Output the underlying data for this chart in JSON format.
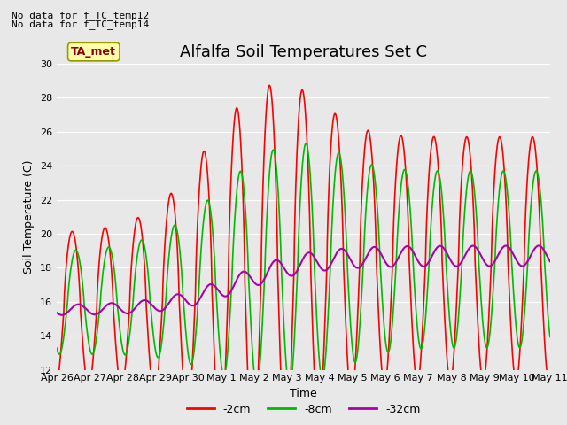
{
  "title": "Alfalfa Soil Temperatures Set C",
  "xlabel": "Time",
  "ylabel": "Soil Temperature (C)",
  "ylim": [
    12,
    30
  ],
  "xlim": [
    0,
    15
  ],
  "no_data_text": [
    "No data for f_TC_temp12",
    "No data for f_TC_temp14"
  ],
  "legend_label": "TA_met",
  "bg_color": "#e8e8e8",
  "series": {
    "neg2cm": {
      "label": "-2cm",
      "color": "#ff0000",
      "lw": 1.2
    },
    "neg8cm": {
      "label": "-8cm",
      "color": "#00bb00",
      "lw": 1.2
    },
    "neg32cm": {
      "label": "-32cm",
      "color": "#aa00aa",
      "lw": 1.5
    }
  },
  "x_tick_labels": [
    "Apr 26",
    "Apr 27",
    "Apr 28",
    "Apr 29",
    "Apr 30",
    "May 1",
    "May 2",
    "May 3",
    "May 4",
    "May 5",
    "May 6",
    "May 7",
    "May 8",
    "May 9",
    "May 10",
    "May 11"
  ],
  "x_ticks": [
    0,
    1,
    2,
    3,
    4,
    5,
    6,
    7,
    8,
    9,
    10,
    11,
    12,
    13,
    14,
    15
  ],
  "y_ticks": [
    12,
    14,
    16,
    18,
    20,
    22,
    24,
    26,
    28,
    30
  ],
  "title_fontsize": 13,
  "axis_fontsize": 9,
  "tick_fontsize": 8,
  "legend_fontsize": 9
}
